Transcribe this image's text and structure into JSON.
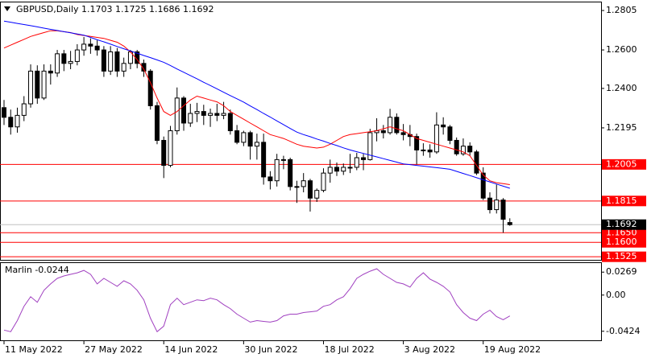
{
  "chart_data": [
    {
      "type": "candlestick",
      "title": "GBPUSD,Daily  1.1703 1.1725 1.1686 1.1692",
      "categories": [
        "11 May 2022",
        null,
        null,
        null,
        null,
        null,
        null,
        null,
        null,
        null,
        null,
        null,
        "27 May 2022",
        null,
        null,
        null,
        null,
        null,
        null,
        null,
        null,
        null,
        null,
        null,
        "14 Jun 2022",
        null,
        null,
        null,
        null,
        null,
        null,
        null,
        null,
        null,
        null,
        null,
        "30 Jun 2022",
        null,
        null,
        null,
        null,
        null,
        null,
        null,
        null,
        null,
        null,
        null,
        "18 Jul 2022",
        null,
        null,
        null,
        null,
        null,
        null,
        null,
        null,
        null,
        null,
        null,
        "3 Aug 2022",
        null,
        null,
        null,
        null,
        null,
        null,
        null,
        null,
        null,
        null,
        null,
        "19 Aug 2022",
        null,
        null,
        null,
        null
      ],
      "open": [
        1.23,
        1.225,
        1.22,
        1.226,
        1.232,
        1.249,
        1.235,
        1.249,
        1.248,
        1.258,
        1.253,
        1.254,
        1.26,
        1.263,
        1.262,
        1.26,
        1.249,
        1.259,
        1.249,
        1.253,
        1.259,
        1.253,
        1.249,
        1.231,
        1.213,
        1.2,
        1.218,
        1.235,
        1.222,
        1.227,
        1.228,
        1.226,
        1.227,
        1.226,
        1.227,
        1.218,
        1.212,
        1.217,
        1.21,
        1.212,
        1.194,
        1.192,
        1.203,
        1.203,
        1.189,
        1.189,
        1.192,
        1.183,
        1.187,
        1.196,
        1.199,
        1.197,
        1.199,
        1.199,
        1.204,
        1.203,
        1.217,
        1.218,
        1.217,
        1.225,
        1.217,
        1.216,
        1.215,
        1.208,
        1.208,
        1.207,
        1.221,
        1.22,
        1.213,
        1.206,
        1.21,
        1.207,
        1.196,
        1.183,
        1.177,
        1.182,
        1.1703
      ],
      "high": [
        1.234,
        1.229,
        1.23,
        1.236,
        1.2525,
        1.252,
        1.2525,
        1.2525,
        1.26,
        1.26,
        1.2595,
        1.263,
        1.2667,
        1.266,
        1.265,
        1.262,
        1.262,
        1.261,
        1.256,
        1.26,
        1.26,
        1.255,
        1.25,
        1.233,
        1.215,
        1.2205,
        1.2405,
        1.236,
        1.232,
        1.2325,
        1.2315,
        1.2295,
        1.232,
        1.233,
        1.229,
        1.221,
        1.218,
        1.218,
        1.2165,
        1.2165,
        1.197,
        1.206,
        1.205,
        1.204,
        1.192,
        1.196,
        1.193,
        1.188,
        1.1985,
        1.203,
        1.2015,
        1.201,
        1.206,
        1.2065,
        1.206,
        1.219,
        1.2245,
        1.221,
        1.2294,
        1.227,
        1.2215,
        1.221,
        1.2165,
        1.2115,
        1.211,
        1.2276,
        1.225,
        1.221,
        1.2145,
        1.214,
        1.212,
        1.208,
        1.199,
        1.186,
        1.19,
        1.183,
        1.1725
      ],
      "low": [
        1.221,
        1.216,
        1.217,
        1.223,
        1.23,
        1.232,
        1.234,
        1.242,
        1.246,
        1.249,
        1.25,
        1.252,
        1.257,
        1.258,
        1.257,
        1.246,
        1.247,
        1.246,
        1.246,
        1.25,
        1.2505,
        1.246,
        1.229,
        1.211,
        1.1934,
        1.199,
        1.216,
        1.218,
        1.22,
        1.2225,
        1.221,
        1.22,
        1.223,
        1.224,
        1.216,
        1.211,
        1.21,
        1.203,
        1.203,
        1.19,
        1.1875,
        1.189,
        1.198,
        1.187,
        1.1805,
        1.186,
        1.176,
        1.181,
        1.186,
        1.191,
        1.1945,
        1.195,
        1.196,
        1.1975,
        1.1975,
        1.2025,
        1.2125,
        1.214,
        1.216,
        1.216,
        1.213,
        1.21,
        1.2005,
        1.205,
        1.204,
        1.206,
        1.216,
        1.211,
        1.205,
        1.205,
        1.205,
        1.195,
        1.182,
        1.175,
        1.175,
        1.165,
        1.1686
      ],
      "close": [
        1.225,
        1.22,
        1.226,
        1.232,
        1.249,
        1.235,
        1.249,
        1.248,
        1.258,
        1.253,
        1.254,
        1.26,
        1.263,
        1.262,
        1.26,
        1.249,
        1.259,
        1.249,
        1.253,
        1.259,
        1.253,
        1.249,
        1.231,
        1.213,
        1.2,
        1.218,
        1.235,
        1.222,
        1.227,
        1.228,
        1.226,
        1.227,
        1.226,
        1.227,
        1.218,
        1.212,
        1.217,
        1.21,
        1.212,
        1.194,
        1.192,
        1.203,
        1.203,
        1.189,
        1.189,
        1.192,
        1.183,
        1.187,
        1.196,
        1.199,
        1.197,
        1.199,
        1.199,
        1.204,
        1.203,
        1.217,
        1.218,
        1.217,
        1.225,
        1.217,
        1.216,
        1.215,
        1.208,
        1.208,
        1.207,
        1.221,
        1.22,
        1.213,
        1.206,
        1.21,
        1.207,
        1.196,
        1.183,
        1.177,
        1.182,
        1.172,
        1.1692
      ],
      "overlays": [
        {
          "color": "#ff0000",
          "values": [
            1.261,
            1.2625,
            1.264,
            1.2655,
            1.267,
            1.268,
            1.269,
            1.27,
            1.27,
            1.2695,
            1.269,
            1.268,
            1.2675,
            1.267,
            1.2665,
            1.266,
            1.265,
            1.264,
            1.262,
            1.259,
            1.255,
            1.25,
            1.243,
            1.235,
            1.228,
            1.226,
            1.228,
            1.231,
            1.234,
            1.236,
            1.235,
            1.234,
            1.233,
            1.231,
            1.228,
            1.226,
            1.224,
            1.222,
            1.22,
            1.218,
            1.216,
            1.215,
            1.214,
            1.2125,
            1.211,
            1.21,
            1.2095,
            1.209,
            1.2095,
            1.211,
            1.213,
            1.215,
            1.216,
            1.2165,
            1.217,
            1.2175,
            1.218,
            1.219,
            1.22,
            1.219,
            1.218,
            1.216,
            1.214,
            1.213,
            1.212,
            1.211,
            1.21,
            1.209,
            1.208,
            1.207,
            1.205,
            1.2,
            1.195,
            1.192,
            1.191,
            1.1905,
            1.19
          ]
        },
        {
          "color": "#0000ff",
          "values": [
            1.275,
            1.2744,
            1.2738,
            1.2732,
            1.2726,
            1.272,
            1.2713,
            1.2707,
            1.2701,
            1.2695,
            1.2689,
            1.2683,
            1.2677,
            1.2665,
            1.2653,
            1.2642,
            1.263,
            1.2618,
            1.2606,
            1.2595,
            1.2583,
            1.2571,
            1.256,
            1.2548,
            1.2536,
            1.2519,
            1.2501,
            1.2484,
            1.2467,
            1.245,
            1.2432,
            1.2415,
            1.2398,
            1.238,
            1.2363,
            1.2346,
            1.2329,
            1.2309,
            1.229,
            1.227,
            1.2251,
            1.2231,
            1.2212,
            1.2192,
            1.2173,
            1.216,
            1.2149,
            1.2137,
            1.2126,
            1.2114,
            1.2103,
            1.2091,
            1.208,
            1.2071,
            1.2062,
            1.2053,
            1.2044,
            1.2035,
            1.2026,
            1.2017,
            1.2008,
            1.2004,
            1.2,
            1.1996,
            1.1992,
            1.1988,
            1.1984,
            1.198,
            1.1969,
            1.1958,
            1.1947,
            1.1936,
            1.1925,
            1.1914,
            1.1903,
            1.1892,
            1.1881
          ]
        }
      ],
      "levels": [
        1.2005,
        1.1815,
        {
          "value": 1.165,
          "label": "1.1650"
        },
        {
          "value": 1.16,
          "label": "1.1600"
        },
        1.1525
      ],
      "level_color": "#ff0000",
      "last_price": 1.1692,
      "ylim": [
        1.1509,
        1.2847
      ],
      "yticks": [
        1.2805,
        {
          "value": 1.26,
          "label": "1.2600"
        },
        {
          "value": 1.24,
          "label": "1.2400"
        },
        1.2195
      ],
      "bull_color": "#ffffff",
      "bear_color": "#000000"
    },
    {
      "type": "line",
      "title": "Marlin -0.0244",
      "color": "#a040c0",
      "values": [
        -0.041,
        -0.0429,
        -0.0299,
        -0.0131,
        -0.0019,
        -0.0084,
        0.0056,
        0.0131,
        0.0196,
        0.0224,
        0.0243,
        0.0261,
        0.0289,
        0.0243,
        0.0131,
        0.0196,
        0.0149,
        0.0103,
        0.0168,
        0.0131,
        0.0056,
        -0.0056,
        -0.0271,
        -0.0429,
        -0.0364,
        -0.0112,
        -0.0037,
        -0.0112,
        -0.0084,
        -0.0056,
        -0.0065,
        -0.0037,
        -0.0056,
        -0.0112,
        -0.0159,
        -0.0224,
        -0.0271,
        -0.0317,
        -0.0299,
        -0.0308,
        -0.0317,
        -0.0299,
        -0.0243,
        -0.0224,
        -0.0224,
        -0.0205,
        -0.0196,
        -0.0187,
        -0.0131,
        -0.0112,
        -0.0056,
        -0.0019,
        0.0075,
        0.0196,
        0.0243,
        0.028,
        0.0308,
        0.0243,
        0.0196,
        0.0149,
        0.0131,
        0.0093,
        0.0196,
        0.0261,
        0.0187,
        0.0149,
        0.0103,
        0.0037,
        -0.0112,
        -0.0205,
        -0.0271,
        -0.0299,
        -0.0224,
        -0.0177,
        -0.0252,
        -0.0289,
        -0.0244
      ],
      "ylim": [
        -0.053,
        0.0375
      ],
      "yticks": [
        0.0269,
        {
          "value": 0,
          "label": "0.00"
        },
        -0.0424
      ]
    }
  ]
}
